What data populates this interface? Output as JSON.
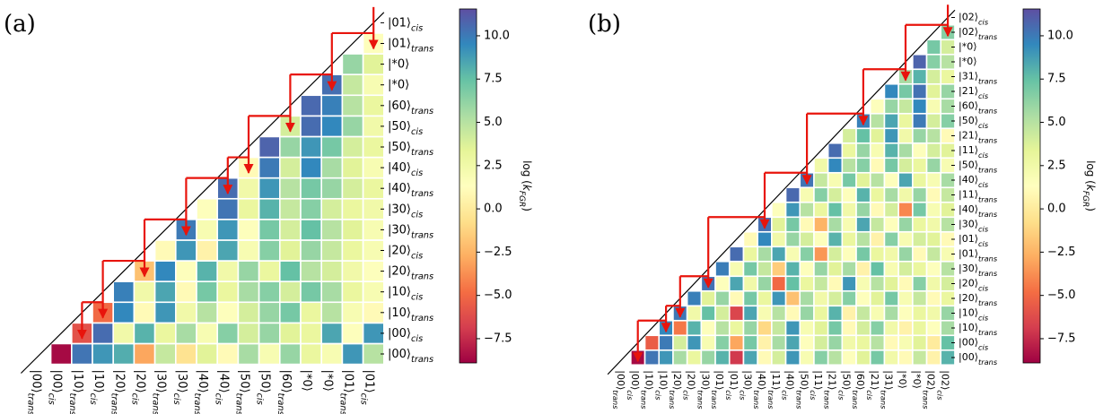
{
  "chart_data": [
    {
      "type": "heatmap",
      "panel_label": "(a)",
      "colormap": "Spectral",
      "states": [
        {
          "ket": "|00⟩",
          "sub": "trans"
        },
        {
          "ket": "|00⟩",
          "sub": "cis"
        },
        {
          "ket": "|10⟩",
          "sub": "trans"
        },
        {
          "ket": "|10⟩",
          "sub": "cis"
        },
        {
          "ket": "|20⟩",
          "sub": "trans"
        },
        {
          "ket": "|20⟩",
          "sub": "cis"
        },
        {
          "ket": "|30⟩",
          "sub": "trans"
        },
        {
          "ket": "|30⟩",
          "sub": "cis"
        },
        {
          "ket": "|40⟩",
          "sub": "trans"
        },
        {
          "ket": "|40⟩",
          "sub": "cis"
        },
        {
          "ket": "|50⟩",
          "sub": "trans"
        },
        {
          "ket": "|50⟩",
          "sub": "cis"
        },
        {
          "ket": "|60⟩",
          "sub": "trans"
        },
        {
          "ket": "|*0⟩"
        },
        {
          "ket": "|*0⟩"
        },
        {
          "ket": "|01⟩",
          "sub": "trans"
        },
        {
          "ket": "|01⟩",
          "sub": "cis"
        }
      ],
      "values": [
        [
          -8.6,
          10.2,
          9.0,
          8.2,
          -3.0,
          4.5,
          -0.5,
          3.5,
          1.0,
          5.5,
          2.0,
          6.0,
          3.0,
          2.0,
          9.0,
          5.0
        ],
        [
          -6.0,
          10.5,
          2.5,
          8.0,
          3.0,
          5.5,
          2.0,
          6.5,
          4.0,
          6.0,
          3.5,
          3.0,
          8.5,
          1.5,
          9.0
        ],
        [
          -5.0,
          9.5,
          1.0,
          9.0,
          2.5,
          5.0,
          1.5,
          4.0,
          6.0,
          7.0,
          3.0,
          5.0,
          2.0,
          1.0
        ],
        [
          9.8,
          2.5,
          8.5,
          1.0,
          7.0,
          3.0,
          5.5,
          6.5,
          4.0,
          7.0,
          5.5,
          3.0,
          2.0
        ],
        [
          -2.0,
          9.5,
          1.5,
          8.0,
          2.5,
          6.0,
          3.0,
          7.5,
          5.0,
          4.0,
          2.5,
          1.5
        ],
        [
          1.0,
          9.0,
          0.5,
          8.5,
          2.0,
          6.5,
          3.5,
          6.0,
          4.5,
          3.0,
          2.0
        ],
        [
          10.0,
          2.0,
          9.0,
          1.5,
          7.0,
          4.0,
          7.5,
          5.0,
          3.5,
          2.0
        ],
        [
          1.5,
          10.2,
          3.0,
          8.0,
          4.5,
          6.5,
          4.0,
          3.0,
          2.5
        ],
        [
          10.5,
          2.5,
          9.0,
          5.0,
          7.0,
          6.0,
          4.0,
          3.0
        ],
        [
          1.0,
          10.0,
          4.0,
          9.5,
          5.5,
          3.5,
          2.0
        ],
        [
          10.8,
          6.0,
          9.0,
          7.0,
          4.0,
          3.0
        ],
        [
          4.0,
          10.5,
          9.5,
          6.0,
          2.5
        ],
        [
          10.6,
          9.8,
          5.0,
          3.0
        ],
        [
          10.4,
          4.5,
          2.0
        ],
        [
          6.0,
          3.5
        ],
        [
          1.5
        ]
      ],
      "colorbar_label": {
        "prefix": "log (",
        "symbol": "k",
        "sub": "FGR",
        "suffix": ")"
      },
      "clim": [
        -8.9,
        11.55
      ],
      "cticks": [
        {
          "value": -7.5,
          "label": "−7.5"
        },
        {
          "value": -5,
          "label": "−5.0"
        },
        {
          "value": -2.5,
          "label": "−2.5"
        },
        {
          "value": 0,
          "label": "0.0"
        },
        {
          "value": 2.5,
          "label": "2.5"
        },
        {
          "value": 5,
          "label": "5.0"
        },
        {
          "value": 7.5,
          "label": "7.5"
        },
        {
          "value": 10,
          "label": "10.0"
        }
      ]
    },
    {
      "type": "heatmap",
      "panel_label": "(b)",
      "colormap": "Spectral",
      "states": [
        {
          "ket": "|00⟩",
          "sub": "trans"
        },
        {
          "ket": "|00⟩",
          "sub": "cis"
        },
        {
          "ket": "|10⟩",
          "sub": "trans"
        },
        {
          "ket": "|10⟩",
          "sub": "cis"
        },
        {
          "ket": "|20⟩",
          "sub": "trans"
        },
        {
          "ket": "|20⟩",
          "sub": "cis"
        },
        {
          "ket": "|30⟩",
          "sub": "trans"
        },
        {
          "ket": "|01⟩",
          "sub": "trans"
        },
        {
          "ket": "|01⟩",
          "sub": "cis"
        },
        {
          "ket": "|30⟩",
          "sub": "cis"
        },
        {
          "ket": "|40⟩",
          "sub": "trans"
        },
        {
          "ket": "|11⟩",
          "sub": "trans"
        },
        {
          "ket": "|40⟩",
          "sub": "cis"
        },
        {
          "ket": "|50⟩",
          "sub": "trans"
        },
        {
          "ket": "|11⟩",
          "sub": "cis"
        },
        {
          "ket": "|21⟩",
          "sub": "trans"
        },
        {
          "ket": "|50⟩",
          "sub": "cis"
        },
        {
          "ket": "|60⟩",
          "sub": "trans"
        },
        {
          "ket": "|21⟩",
          "sub": "cis"
        },
        {
          "ket": "|31⟩",
          "sub": "trans"
        },
        {
          "ket": "|*0⟩"
        },
        {
          "ket": "|*0⟩"
        },
        {
          "ket": "|02⟩",
          "sub": "trans"
        },
        {
          "ket": "|02⟩",
          "sub": "cis"
        }
      ],
      "values": [
        [
          -8.6,
          10.2,
          9.0,
          5.5,
          3.0,
          6.0,
          8.0,
          -7.0,
          8.5,
          1.0,
          4.0,
          9.0,
          2.0,
          6.5,
          5.0,
          1.5,
          3.5,
          7.0,
          2.5,
          1.0,
          4.5,
          0.5,
          8.0
        ],
        [
          -5.5,
          10.0,
          4.0,
          9.0,
          2.0,
          6.5,
          -3.0,
          7.0,
          0.5,
          5.5,
          8.5,
          1.5,
          4.0,
          6.0,
          2.5,
          3.0,
          5.0,
          1.0,
          2.0,
          3.5,
          0.0,
          7.5
        ],
        [
          9.5,
          -4.5,
          8.0,
          1.5,
          5.0,
          3.0,
          6.0,
          -1.0,
          4.5,
          9.0,
          2.0,
          3.5,
          7.0,
          1.0,
          4.0,
          6.5,
          2.5,
          0.5,
          3.0,
          1.5,
          5.5
        ],
        [
          10.1,
          2.5,
          7.5,
          4.0,
          -6.5,
          8.5,
          2.0,
          5.0,
          1.0,
          6.0,
          3.0,
          8.0,
          0.5,
          4.5,
          2.0,
          5.5,
          1.5,
          3.0,
          2.5,
          6.0
        ],
        [
          9.8,
          3.5,
          6.0,
          1.0,
          7.0,
          3.0,
          9.0,
          -2.0,
          5.5,
          2.5,
          4.0,
          6.5,
          1.5,
          3.5,
          7.0,
          2.0,
          4.5,
          1.0,
          3.0
        ],
        [
          10.3,
          1.5,
          8.5,
          2.5,
          6.0,
          -5.0,
          7.5,
          3.0,
          4.5,
          1.0,
          9.0,
          2.0,
          5.0,
          3.5,
          1.0,
          6.5,
          2.5,
          4.0
        ],
        [
          9.9,
          2.0,
          7.0,
          4.5,
          -1.5,
          8.0,
          1.5,
          6.0,
          3.5,
          5.5,
          0.5,
          7.5,
          2.0,
          4.0,
          3.0,
          1.5,
          5.0
        ],
        [
          10.5,
          3.0,
          5.5,
          8.5,
          2.0,
          6.5,
          -3.5,
          4.0,
          1.5,
          7.0,
          3.0,
          2.5,
          6.0,
          1.0,
          4.5,
          2.0
        ],
        [
          1.0,
          9.5,
          2.5,
          6.0,
          4.0,
          1.5,
          8.0,
          3.0,
          5.0,
          0.5,
          6.5,
          2.0,
          4.0,
          3.5,
          1.0
        ],
        [
          10.4,
          3.5,
          7.0,
          1.0,
          -2.5,
          5.5,
          2.0,
          8.5,
          4.5,
          1.5,
          6.0,
          3.0,
          2.5,
          5.0
        ],
        [
          1.5,
          9.0,
          5.0,
          3.0,
          7.5,
          2.5,
          6.0,
          1.0,
          4.0,
          -4.0,
          7.0,
          2.0,
          3.5
        ],
        [
          10.6,
          2.0,
          6.5,
          4.0,
          1.5,
          8.0,
          3.0,
          5.5,
          2.5,
          6.0,
          1.0,
          4.5
        ],
        [
          10.2,
          4.5,
          2.0,
          7.0,
          3.5,
          5.0,
          1.5,
          8.5,
          3.0,
          2.0,
          5.5
        ],
        [
          2.5,
          9.5,
          5.0,
          6.5,
          1.0,
          7.0,
          4.0,
          3.0,
          6.0,
          2.0
        ],
        [
          10.5,
          3.0,
          6.0,
          2.0,
          8.0,
          5.5,
          1.5,
          4.0,
          3.5
        ],
        [
          4.0,
          7.5,
          3.5,
          9.0,
          2.5,
          6.0,
          5.0,
          1.0
        ],
        [
          9.8,
          5.0,
          8.5,
          3.0,
          10.0,
          4.0,
          6.5
        ],
        [
          1.5,
          6.0,
          4.5,
          9.5,
          2.0,
          5.5
        ],
        [
          9.5,
          7.0,
          10.3,
          3.5,
          6.0
        ],
        [
          5.5,
          8.0,
          4.0,
          3.0
        ],
        [
          10.8,
          6.5,
          5.0
        ],
        [
          7.0,
          4.0
        ],
        [
          6.5
        ]
      ],
      "colorbar_label": {
        "prefix": "log (",
        "symbol": "k",
        "sub": "FGR",
        "suffix": ")"
      },
      "clim": [
        -8.9,
        11.55
      ],
      "cticks": [
        {
          "value": -7.5,
          "label": "−7.5"
        },
        {
          "value": -5,
          "label": "−5.0"
        },
        {
          "value": -2.5,
          "label": "−2.5"
        },
        {
          "value": 0,
          "label": "0.0"
        },
        {
          "value": 2.5,
          "label": "2.5"
        },
        {
          "value": 5,
          "label": "5.0"
        },
        {
          "value": 7.5,
          "label": "7.5"
        },
        {
          "value": 10,
          "label": "10.0"
        }
      ]
    }
  ]
}
